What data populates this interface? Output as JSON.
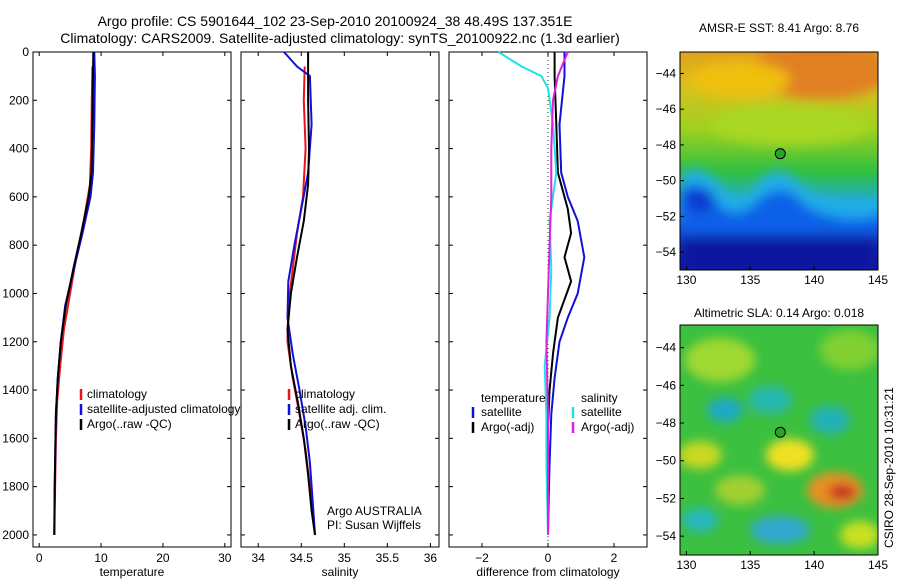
{
  "header": {
    "line1": "Argo profile: CS 5901644_102 23-Sep-2010 20100924_38 48.49S 137.351E",
    "line2": "Climatology: CARS2009. Satellite-adjusted climatology: synTS_20100922.nc (1.3d earlier)"
  },
  "watermark": "CSIRO 28-Sep-2010 10:31:21",
  "colors": {
    "climatology": "#e8141c",
    "satellite": "#1010d8",
    "argo": "#000000",
    "satellite_cyan": "#22e0e8",
    "argo_magenta": "#e020e0",
    "marker": "#2ca02c"
  },
  "chart_data": [
    {
      "type": "line",
      "id": "temperature",
      "xlabel": "temperature",
      "ylabel": "",
      "xlim": [
        -1,
        31
      ],
      "ylim": [
        2050,
        0
      ],
      "xticks": [
        0,
        10,
        20,
        30
      ],
      "yticks": [
        0,
        200,
        400,
        600,
        800,
        1000,
        1200,
        1400,
        1600,
        1800,
        2000
      ],
      "legend": {
        "placement": "lower-right",
        "entries": [
          {
            "label": "climatology",
            "color": "#e8141c"
          },
          {
            "label": "satellite-adjusted climatology",
            "color": "#1010d8"
          },
          {
            "label": "Argo(..raw -QC)",
            "color": "#000000"
          }
        ]
      },
      "series": [
        {
          "name": "climatology",
          "color": "#e8141c",
          "x": [
            8.6,
            8.5,
            8.4,
            8.2,
            7.2,
            6.0,
            5.0,
            4.0,
            3.4,
            2.9,
            2.7,
            2.6,
            2.5,
            2.45
          ],
          "y": [
            60,
            200,
            400,
            550,
            700,
            850,
            1000,
            1150,
            1300,
            1450,
            1600,
            1750,
            1900,
            2000
          ]
        },
        {
          "name": "satellite-adjusted climatology",
          "color": "#1010d8",
          "x": [
            8.9,
            9.0,
            8.9,
            8.7,
            8.3,
            7.0,
            5.6,
            4.2,
            3.5,
            3.0,
            2.7,
            2.6,
            2.5,
            2.45
          ],
          "y": [
            0,
            100,
            300,
            500,
            600,
            750,
            900,
            1050,
            1200,
            1350,
            1500,
            1650,
            1800,
            2000
          ]
        },
        {
          "name": "Argo(..raw -QC)",
          "color": "#000000",
          "x": [
            8.75,
            8.7,
            8.6,
            8.45,
            8.0,
            6.8,
            5.5,
            4.3,
            3.5,
            3.0,
            2.7,
            2.6,
            2.5,
            2.45
          ],
          "y": [
            0,
            100,
            300,
            500,
            600,
            750,
            900,
            1050,
            1200,
            1350,
            1500,
            1650,
            1800,
            2000
          ]
        }
      ]
    },
    {
      "type": "line",
      "id": "salinity",
      "xlabel": "salinity",
      "xlim": [
        33.8,
        36.1
      ],
      "ylim": [
        2050,
        0
      ],
      "xticks": [
        34,
        34.5,
        35,
        35.5,
        36
      ],
      "legend": {
        "placement": "lower-right",
        "entries": [
          {
            "label": "climatology",
            "color": "#e8141c"
          },
          {
            "label": "satellite adj. clim.",
            "color": "#1010d8"
          },
          {
            "label": "Argo(..raw -QC)",
            "color": "#000000"
          }
        ]
      },
      "annotation": [
        "Argo AUSTRALIA",
        "PI: Susan Wijffels"
      ],
      "series": [
        {
          "name": "climatology",
          "color": "#e8141c",
          "x": [
            34.54,
            34.53,
            34.55,
            34.52,
            34.45,
            34.4,
            34.35,
            34.34,
            34.4,
            34.48,
            34.55,
            34.6,
            34.63,
            34.66
          ],
          "y": [
            60,
            200,
            400,
            600,
            750,
            900,
            1050,
            1200,
            1350,
            1500,
            1650,
            1800,
            1900,
            2000
          ]
        },
        {
          "name": "satellite adj. clim.",
          "color": "#1010d8",
          "x": [
            34.3,
            34.45,
            34.6,
            34.62,
            34.58,
            34.5,
            34.42,
            34.35,
            34.34,
            34.4,
            34.48,
            34.55,
            34.6,
            34.63,
            34.66
          ],
          "y": [
            0,
            60,
            100,
            300,
            500,
            650,
            800,
            950,
            1100,
            1250,
            1400,
            1550,
            1700,
            1850,
            2000
          ]
        },
        {
          "name": "Argo(..raw -QC)",
          "color": "#000000",
          "x": [
            34.58,
            34.58,
            34.59,
            34.58,
            34.53,
            34.45,
            34.38,
            34.34,
            34.38,
            34.46,
            34.53,
            34.58,
            34.62,
            34.66
          ],
          "y": [
            0,
            200,
            400,
            550,
            700,
            850,
            1000,
            1150,
            1300,
            1450,
            1600,
            1750,
            1900,
            2000
          ]
        }
      ]
    },
    {
      "type": "line",
      "id": "difference",
      "xlabel": "difference from climatology",
      "xlim": [
        -3,
        3
      ],
      "ylim": [
        2050,
        0
      ],
      "xticks": [
        -2,
        0,
        2
      ],
      "zero_line": "dotted",
      "legend": {
        "placement": "lower-center",
        "columns": [
          {
            "heading": "temperature",
            "entries": [
              {
                "label": "satellite",
                "color": "#1010d8"
              },
              {
                "label": "Argo(-adj)",
                "color": "#000000"
              }
            ]
          },
          {
            "heading": "salinity",
            "entries": [
              {
                "label": "satellite",
                "color": "#22e0e8"
              },
              {
                "label": "Argo(-adj)",
                "color": "#e020e0"
              }
            ]
          }
        ]
      },
      "series": [
        {
          "name": "temperature satellite",
          "color": "#1010d8",
          "x": [
            0.5,
            0.5,
            0.35,
            0.4,
            0.6,
            0.9,
            1.1,
            0.9,
            0.6,
            0.35,
            0.2,
            0.1,
            0.05,
            0.02,
            0.0
          ],
          "y": [
            0,
            100,
            300,
            500,
            600,
            700,
            850,
            1000,
            1100,
            1200,
            1350,
            1500,
            1700,
            1850,
            2000
          ]
        },
        {
          "name": "temperature Argo(-adj)",
          "color": "#000000",
          "x": [
            0.2,
            0.2,
            0.25,
            0.3,
            0.6,
            0.7,
            0.5,
            0.7,
            0.3,
            0.15,
            0.05,
            0.0,
            0.0,
            0.0
          ],
          "y": [
            0,
            100,
            300,
            500,
            650,
            750,
            850,
            950,
            1100,
            1250,
            1400,
            1550,
            1750,
            2000
          ]
        },
        {
          "name": "salinity satellite",
          "color": "#22e0e8",
          "x": [
            -1.5,
            -0.8,
            -0.2,
            0.0,
            0.15,
            0.25,
            0.05,
            0.1,
            0.05,
            -0.1,
            -0.05,
            -0.05,
            0.0
          ],
          "y": [
            0,
            60,
            100,
            150,
            300,
            500,
            700,
            900,
            1100,
            1300,
            1500,
            1700,
            2000
          ]
        },
        {
          "name": "salinity Argo(-adj)",
          "color": "#e020e0",
          "x": [
            0.6,
            0.3,
            0.15,
            0.1,
            0.1,
            0.05,
            0.0,
            -0.05,
            0.0,
            0.0,
            0.0
          ],
          "y": [
            0,
            100,
            200,
            400,
            600,
            800,
            1000,
            1200,
            1500,
            1800,
            2000
          ]
        }
      ]
    },
    {
      "type": "heatmap",
      "id": "sst",
      "title": "AMSR-E SST: 8.41 Argo: 8.76",
      "xlim": [
        129.5,
        145
      ],
      "ylim": [
        -55,
        -42.8
      ],
      "xticks": [
        130,
        135,
        140,
        145
      ],
      "yticks": [
        -44,
        -46,
        -48,
        -50,
        -52,
        -54
      ],
      "marker": {
        "lon": 137.35,
        "lat": -48.49,
        "color": "#2ca02c"
      }
    },
    {
      "type": "heatmap",
      "id": "sla",
      "title": "Altimetric SLA: 0.14 Argo: 0.018",
      "xlim": [
        129.5,
        145
      ],
      "ylim": [
        -55,
        -42.8
      ],
      "xticks": [
        130,
        135,
        140,
        145
      ],
      "yticks": [
        -44,
        -46,
        -48,
        -50,
        -52,
        -54
      ],
      "marker": {
        "lon": 137.35,
        "lat": -48.49,
        "color": "#2ca02c"
      }
    }
  ]
}
